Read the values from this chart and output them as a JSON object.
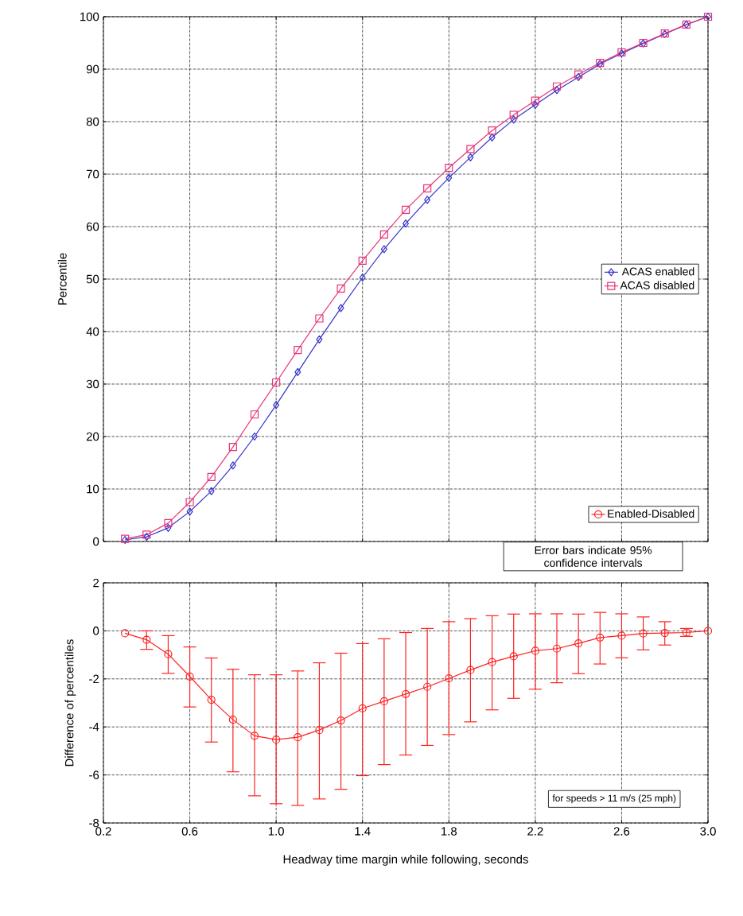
{
  "chart_data": [
    {
      "type": "line",
      "ylabel": "Percentile",
      "xlim": [
        0.2,
        3.0
      ],
      "ylim": [
        0,
        100
      ],
      "xticks": [
        0.2,
        0.6,
        1,
        1.4,
        1.8,
        2.2,
        2.6,
        3
      ],
      "yticks": [
        0,
        10,
        20,
        30,
        40,
        50,
        60,
        70,
        80,
        90,
        100
      ],
      "x": [
        0.3,
        0.4,
        0.5,
        0.6,
        0.7,
        0.8,
        0.9,
        1.0,
        1.1,
        1.2,
        1.3,
        1.4,
        1.5,
        1.6,
        1.7,
        1.8,
        1.9,
        2.0,
        2.1,
        2.2,
        2.3,
        2.4,
        2.5,
        2.6,
        2.7,
        2.8,
        2.9,
        3.0
      ],
      "series": [
        {
          "name": "ACAS enabled",
          "color": "#3333cc",
          "marker": "diamond",
          "values": [
            0.3,
            0.9,
            2.6,
            5.7,
            9.6,
            14.5,
            20,
            26,
            32.3,
            38.5,
            44.5,
            50.3,
            55.7,
            60.6,
            65.1,
            69.3,
            73.2,
            77,
            80.4,
            83.2,
            86,
            88.5,
            91,
            93,
            94.9,
            96.7,
            98.5,
            100
          ]
        },
        {
          "name": "ACAS disabled",
          "color": "#e8337a",
          "marker": "square",
          "values": [
            0.5,
            1.3,
            3.5,
            7.5,
            12.3,
            18,
            24.2,
            30.3,
            36.5,
            42.5,
            48.2,
            53.5,
            58.5,
            63.2,
            67.3,
            71.2,
            74.8,
            78.3,
            81.3,
            84,
            86.7,
            89,
            91.2,
            93.2,
            95,
            96.8,
            98.5,
            100
          ]
        }
      ],
      "grid": true,
      "legend": "right",
      "tick_labels": "y",
      "line_style": "solid"
    },
    {
      "type": "line",
      "xlabel": "Headway time margin while following, seconds",
      "ylabel": "Difference of percentiles",
      "xlim": [
        0.2,
        3.0
      ],
      "ylim": [
        -8,
        2
      ],
      "xticks": [
        0.2,
        0.6,
        {
          "value": 1.0,
          "label": "1.0"
        },
        1.4,
        1.8,
        2.2,
        2.6,
        {
          "value": 3.0,
          "label": "3.0"
        }
      ],
      "yticks": [
        -8,
        -6,
        -4,
        -2,
        0,
        2
      ],
      "x": [
        0.3,
        0.4,
        0.5,
        0.6,
        0.7,
        0.8,
        0.9,
        1.0,
        1.1,
        1.2,
        1.3,
        1.4,
        1.5,
        1.6,
        1.7,
        1.8,
        1.9,
        2.0,
        2.1,
        2.2,
        2.3,
        2.4,
        2.5,
        2.6,
        2.7,
        2.8,
        2.9,
        3.0
      ],
      "series": [
        {
          "name": "Enabled-Disabled",
          "color": "#ff2020",
          "marker": "circle",
          "values": [
            -0.1,
            -0.37,
            -0.97,
            -1.9,
            -2.87,
            -3.7,
            -4.37,
            -4.53,
            -4.43,
            -4.13,
            -3.73,
            -3.23,
            -2.93,
            -2.63,
            -2.33,
            -1.98,
            -1.63,
            -1.3,
            -1.06,
            -0.83,
            -0.74,
            -0.52,
            -0.28,
            -0.2,
            -0.11,
            -0.09,
            -0.07,
            0
          ],
          "errors": [
            null,
            [
              -0.77,
              0
            ],
            [
              -1.77,
              -0.2
            ],
            [
              -3.17,
              -0.67
            ],
            [
              -4.63,
              -1.13
            ],
            [
              -5.87,
              -1.6
            ],
            [
              -6.87,
              -1.83
            ],
            [
              -7.2,
              -1.83
            ],
            [
              -7.27,
              -1.67
            ],
            [
              -7.0,
              -1.33
            ],
            [
              -6.6,
              -0.93
            ],
            [
              -6.03,
              -0.53
            ],
            [
              -5.57,
              -0.33
            ],
            [
              -5.17,
              -0.07
            ],
            [
              -4.77,
              0.1
            ],
            [
              -4.32,
              0.38
            ],
            [
              -3.79,
              0.51
            ],
            [
              -3.29,
              0.63
            ],
            [
              -2.81,
              0.7
            ],
            [
              -2.43,
              0.71
            ],
            [
              -2.16,
              0.71
            ],
            [
              -1.78,
              0.7
            ],
            [
              -1.38,
              0.77
            ],
            [
              -1.12,
              0.71
            ],
            [
              -0.79,
              0.58
            ],
            [
              -0.59,
              0.38
            ],
            [
              -0.23,
              0.1
            ],
            null
          ]
        }
      ],
      "annotations": [
        "Error bars indicate 95% confidence intervals",
        "for speeds > 11 m/s (25 mph)"
      ],
      "grid": true,
      "legend": "top right",
      "line_style": "solid"
    }
  ]
}
